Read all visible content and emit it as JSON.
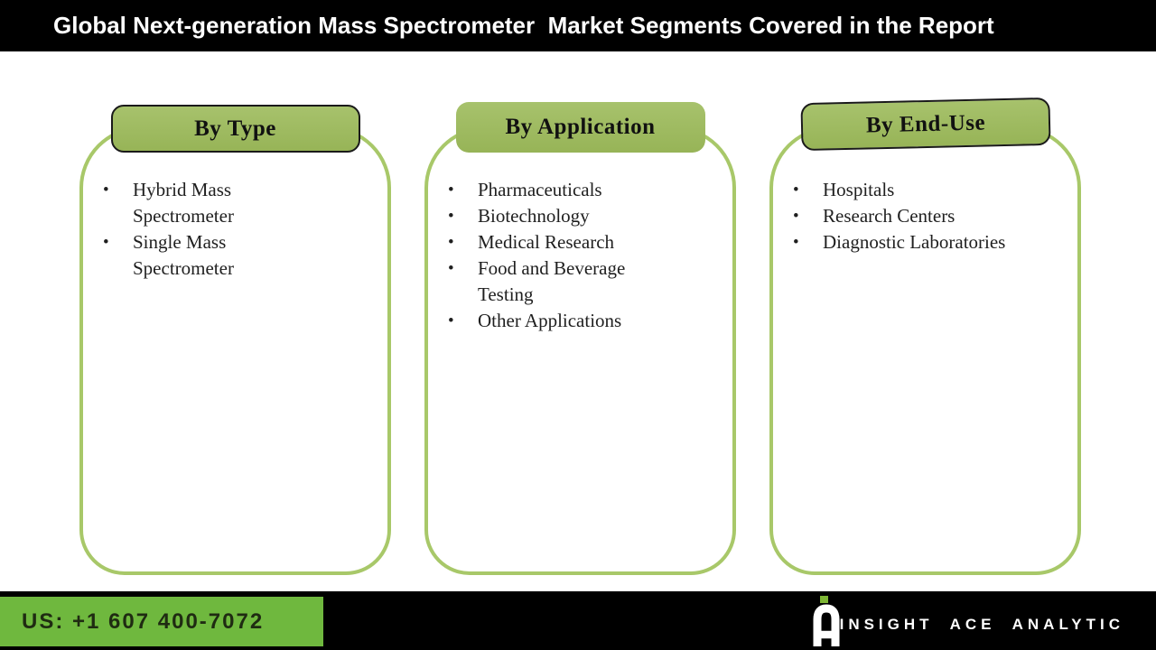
{
  "header": {
    "title": "Global Next-generation Mass Spectrometer  Market Segments Covered in the Report"
  },
  "columns": [
    {
      "title": "By Type",
      "items": [
        "Hybrid Mass Spectrometer",
        "Single Mass Spectrometer"
      ]
    },
    {
      "title": "By Application",
      "items": [
        "Pharmaceuticals",
        "Biotechnology",
        "Medical Research",
        "Food and Beverage Testing",
        "Other Applications"
      ]
    },
    {
      "title": "By End-Use",
      "items": [
        "Hospitals",
        "Research Centers",
        "Diagnostic Laboratories"
      ]
    }
  ],
  "footer": {
    "phone": "US: +1 607 400-7072",
    "brand": "INSIGHT ACE ANALYTIC"
  },
  "colors": {
    "header_bg": "#000000",
    "header_text": "#ffffff",
    "tab_green_top": "#a7c26c",
    "tab_green_bottom": "#97b457",
    "tab_border": "#1a1a1a",
    "tab_text": "#111111",
    "box_border": "#a8c869",
    "list_text": "#1f1f1f",
    "footer_bar": "#000000",
    "footer_green": "#6fb83e",
    "phone_text": "#1f2b12",
    "brand_text": "#ffffff",
    "logo_green": "#7db534",
    "logo_white": "#ffffff"
  }
}
